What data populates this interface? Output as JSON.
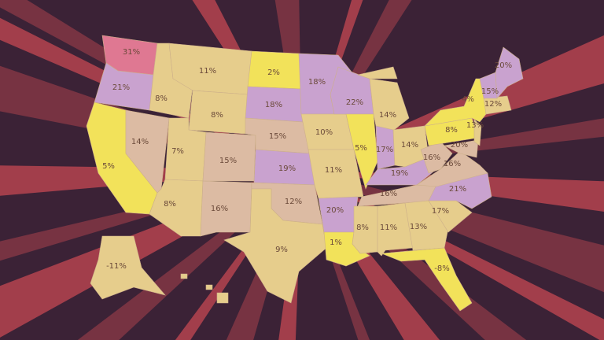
{
  "colors": {
    "background": "#3b2236",
    "ray": "#e8525a",
    "yellow": "#f2e25a",
    "tan": "#e6cd8c",
    "peach": "#dcbba3",
    "lavender": "#c9a2cf",
    "pink": "#df7892"
  },
  "states": [
    {
      "id": "WA",
      "value": "31%",
      "fill": "pink"
    },
    {
      "id": "OR",
      "value": "21%",
      "fill": "lavender"
    },
    {
      "id": "CA",
      "value": "5%",
      "fill": "yellow"
    },
    {
      "id": "NV",
      "value": "14%",
      "fill": "peach"
    },
    {
      "id": "ID",
      "value": "8%",
      "fill": "tan"
    },
    {
      "id": "MT",
      "value": "11%",
      "fill": "tan"
    },
    {
      "id": "WY",
      "value": "8%",
      "fill": "tan"
    },
    {
      "id": "UT",
      "value": "7%",
      "fill": "tan"
    },
    {
      "id": "AZ",
      "value": "8%",
      "fill": "tan"
    },
    {
      "id": "CO",
      "value": "15%",
      "fill": "peach"
    },
    {
      "id": "NM",
      "value": "16%",
      "fill": "peach"
    },
    {
      "id": "ND",
      "value": "2%",
      "fill": "yellow"
    },
    {
      "id": "SD",
      "value": "18%",
      "fill": "lavender"
    },
    {
      "id": "NE",
      "value": "15%",
      "fill": "peach"
    },
    {
      "id": "KS",
      "value": "19%",
      "fill": "lavender"
    },
    {
      "id": "OK",
      "value": "12%",
      "fill": "peach"
    },
    {
      "id": "TX",
      "value": "9%",
      "fill": "tan"
    },
    {
      "id": "MN",
      "value": "18%",
      "fill": "lavender"
    },
    {
      "id": "IA",
      "value": "10%",
      "fill": "tan"
    },
    {
      "id": "MO",
      "value": "11%",
      "fill": "tan"
    },
    {
      "id": "AR",
      "value": "20%",
      "fill": "lavender"
    },
    {
      "id": "LA",
      "value": "1%",
      "fill": "yellow"
    },
    {
      "id": "WI",
      "value": "22%",
      "fill": "lavender"
    },
    {
      "id": "IL",
      "value": "5%",
      "fill": "yellow"
    },
    {
      "id": "MI",
      "value": "14%",
      "fill": "tan"
    },
    {
      "id": "IN",
      "value": "17%",
      "fill": "lavender"
    },
    {
      "id": "OH",
      "value": "14%",
      "fill": "tan"
    },
    {
      "id": "KY",
      "value": "19%",
      "fill": "lavender"
    },
    {
      "id": "TN",
      "value": "16%",
      "fill": "peach"
    },
    {
      "id": "MS",
      "value": "8%",
      "fill": "tan"
    },
    {
      "id": "AL",
      "value": "11%",
      "fill": "tan"
    },
    {
      "id": "GA",
      "value": "13%",
      "fill": "tan"
    },
    {
      "id": "FL",
      "value": "-8%",
      "fill": "yellow"
    },
    {
      "id": "SC",
      "value": "17%",
      "fill": "tan"
    },
    {
      "id": "NC",
      "value": "21%",
      "fill": "lavender"
    },
    {
      "id": "VA",
      "value": "16%",
      "fill": "peach"
    },
    {
      "id": "WV",
      "value": "16%",
      "fill": "peach"
    },
    {
      "id": "PA",
      "value": "8%",
      "fill": "yellow"
    },
    {
      "id": "NY",
      "value": "4%",
      "fill": "yellow"
    },
    {
      "id": "MD",
      "value": "20%",
      "fill": "peach"
    },
    {
      "id": "NJ",
      "value": "13%",
      "fill": "tan"
    },
    {
      "id": "MA",
      "value": "12%",
      "fill": "tan"
    },
    {
      "id": "NH",
      "value": "15%",
      "fill": "lavender"
    },
    {
      "id": "ME",
      "value": "20%",
      "fill": "lavender"
    },
    {
      "id": "AK",
      "value": "-11%",
      "fill": "tan"
    },
    {
      "id": "HI",
      "value": "",
      "fill": "tan"
    }
  ]
}
